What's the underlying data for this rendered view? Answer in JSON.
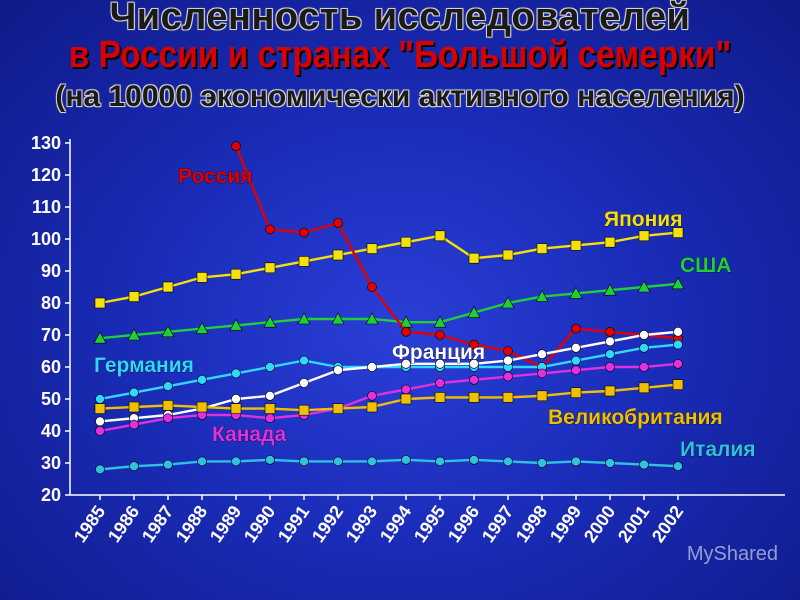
{
  "header": {
    "line1": "Численность исследователей",
    "line2": "в России и странах \"Большой семерки\"",
    "line3": "(на 10000 экономически активного населения)"
  },
  "watermark": "MyShared",
  "chart_data": {
    "type": "line",
    "x": [
      "1985",
      "1986",
      "1987",
      "1988",
      "1989",
      "1990",
      "1991",
      "1992",
      "1993",
      "1994",
      "1995",
      "1996",
      "1997",
      "1998",
      "1999",
      "2000",
      "2001",
      "2002"
    ],
    "ylim": [
      20,
      130
    ],
    "yticks": [
      20,
      30,
      40,
      50,
      60,
      70,
      80,
      90,
      100,
      110,
      120,
      130
    ],
    "grid": false,
    "series": [
      {
        "name": "Япония",
        "color": "#f5e10a",
        "marker": "square",
        "values": [
          80,
          82,
          85,
          88,
          89,
          91,
          93,
          95,
          97,
          99,
          101,
          94,
          95,
          97,
          98,
          99,
          101,
          102
        ]
      },
      {
        "name": "США",
        "color": "#1fcf3a",
        "marker": "triangle",
        "values": [
          69,
          70,
          71,
          72,
          73,
          74,
          75,
          75,
          75,
          74,
          74,
          77,
          80,
          82,
          83,
          84,
          85,
          86
        ]
      },
      {
        "name": "Россия",
        "color": "#e00000",
        "marker": "circle",
        "values": [
          null,
          null,
          null,
          null,
          129,
          103,
          102,
          105,
          85,
          71,
          70,
          67,
          65,
          60,
          72,
          71,
          70,
          69
        ]
      },
      {
        "name": "Германия",
        "color": "#30d8ff",
        "marker": "circle",
        "values": [
          50,
          52,
          54,
          56,
          58,
          60,
          62,
          60,
          60,
          60,
          60,
          60,
          60,
          60,
          62,
          64,
          66,
          67
        ]
      },
      {
        "name": "Франция",
        "color": "#ffffff",
        "marker": "circle",
        "values": [
          43,
          44,
          45,
          47,
          50,
          51,
          55,
          59,
          60,
          61,
          61,
          61,
          62,
          64,
          66,
          68,
          70,
          71
        ]
      },
      {
        "name": "Канада",
        "color": "#e030e0",
        "marker": "circle",
        "values": [
          40,
          42,
          44,
          45,
          45,
          44,
          45,
          47,
          51,
          53,
          55,
          56,
          57,
          58,
          59,
          60,
          60,
          61
        ]
      },
      {
        "name": "Великобритания",
        "color": "#f0c000",
        "marker": "square",
        "values": [
          47,
          47.5,
          48,
          47.5,
          47,
          47,
          46.5,
          47,
          47.5,
          50,
          50.5,
          50.5,
          50.5,
          51,
          52,
          52.5,
          53.5,
          54.5
        ]
      },
      {
        "name": "Италия",
        "color": "#30c0e0",
        "marker": "circle",
        "values": [
          28,
          29,
          29.5,
          30.5,
          30.5,
          31,
          30.5,
          30.5,
          30.5,
          31,
          30.5,
          31,
          30.5,
          30,
          30.5,
          30,
          29.5,
          29
        ]
      }
    ]
  }
}
